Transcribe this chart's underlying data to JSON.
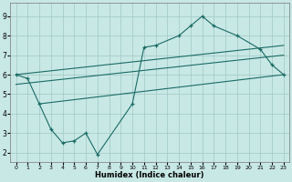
{
  "xlabel": "Humidex (Indice chaleur)",
  "background_color": "#c8e8e5",
  "grid_color": "#a0c8c4",
  "line_color": "#1a6b65",
  "xlim": [
    -0.5,
    23.5
  ],
  "ylim": [
    1.5,
    9.7
  ],
  "xticks": [
    0,
    1,
    2,
    3,
    4,
    5,
    6,
    7,
    8,
    9,
    10,
    11,
    12,
    13,
    14,
    15,
    16,
    17,
    18,
    19,
    20,
    21,
    22,
    23
  ],
  "yticks": [
    2,
    3,
    4,
    5,
    6,
    7,
    8,
    9
  ],
  "data_x": [
    0,
    1,
    2,
    3,
    4,
    5,
    6,
    7,
    10,
    11,
    12,
    14,
    15,
    16,
    17,
    19,
    21,
    22,
    23
  ],
  "data_y": [
    6.0,
    5.8,
    4.5,
    3.2,
    2.5,
    2.6,
    3.0,
    1.9,
    4.5,
    7.4,
    7.5,
    8.0,
    8.5,
    9.0,
    8.5,
    8.0,
    7.3,
    6.5,
    6.0
  ],
  "upper_line_x": [
    0,
    23
  ],
  "upper_line_y": [
    6.0,
    7.5
  ],
  "mid_line_x": [
    0,
    23
  ],
  "mid_line_y": [
    5.5,
    7.0
  ],
  "lower_line_x": [
    2,
    23
  ],
  "lower_line_y": [
    4.5,
    6.0
  ]
}
